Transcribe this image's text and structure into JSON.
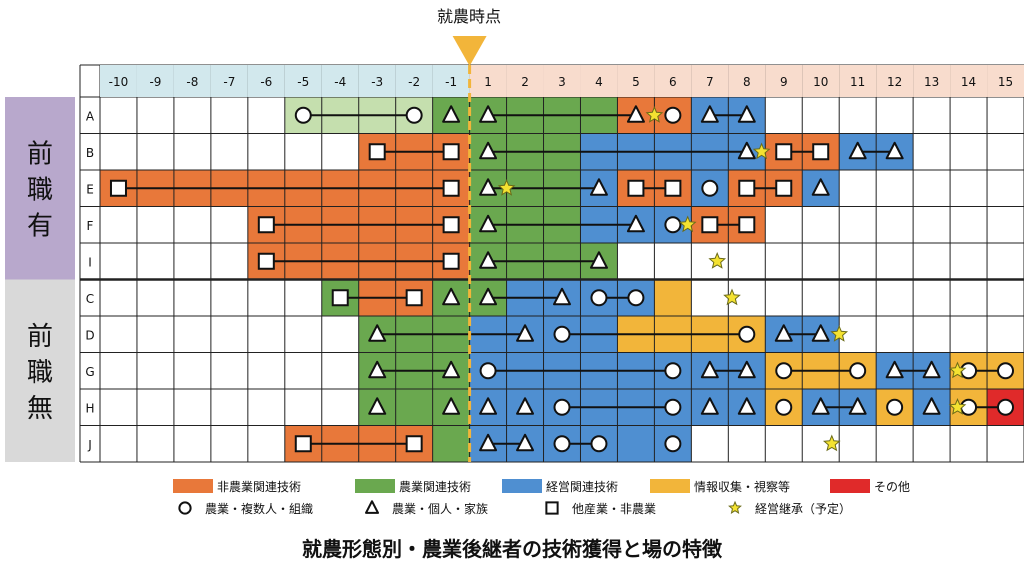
{
  "chart_data": {
    "type": "table",
    "title": "就農形態別・農業後継者の技術獲得と場の特徴",
    "marker_label": "就農時点",
    "columns": [
      "-10",
      "-9",
      "-8",
      "-7",
      "-6",
      "-5",
      "-4",
      "-3",
      "-2",
      "-1",
      "1",
      "2",
      "3",
      "4",
      "5",
      "6",
      "7",
      "8",
      "9",
      "10",
      "11",
      "12",
      "13",
      "14",
      "15"
    ],
    "groups": [
      {
        "label": "前\n職\n有",
        "label_chars": [
          "前",
          "職",
          "有"
        ],
        "color": "#b8a8cc",
        "rows": [
          "A",
          "B",
          "E",
          "F",
          "I"
        ]
      },
      {
        "label": "前\n職\n無",
        "label_chars": [
          "前",
          "職",
          "無"
        ],
        "color": "#d9d9d9",
        "rows": [
          "C",
          "D",
          "G",
          "H",
          "J"
        ]
      }
    ],
    "rows": [
      {
        "id": "A",
        "fills": [
          {
            "from": -5,
            "to": -2,
            "cat": "green_light"
          },
          {
            "from": -1,
            "to": 4,
            "cat": "agri"
          },
          {
            "from": 5,
            "to": 6,
            "cat": "nonfarm"
          },
          {
            "from": 7,
            "to": 8,
            "cat": "mgmt"
          }
        ],
        "symbols": [
          {
            "c": -5,
            "s": "circle"
          },
          {
            "c": -2,
            "s": "circle"
          },
          {
            "c": -1,
            "s": "triangle"
          },
          {
            "c": 1,
            "s": "triangle"
          },
          {
            "c": 5,
            "s": "triangle"
          },
          {
            "c": 6,
            "s": "circle"
          },
          {
            "c": 7,
            "s": "triangle"
          },
          {
            "c": 8,
            "s": "triangle"
          }
        ],
        "lines": [
          [
            -5,
            -2
          ],
          [
            1,
            5
          ],
          [
            7,
            8
          ]
        ],
        "stars": [
          5.5
        ]
      },
      {
        "id": "B",
        "fills": [
          {
            "from": -3,
            "to": -1,
            "cat": "nonfarm"
          },
          {
            "from": 1,
            "to": 3,
            "cat": "agri"
          },
          {
            "from": 4,
            "to": 8,
            "cat": "mgmt"
          },
          {
            "from": 9,
            "to": 10,
            "cat": "nonfarm"
          },
          {
            "from": 11,
            "to": 12,
            "cat": "mgmt"
          }
        ],
        "symbols": [
          {
            "c": -3,
            "s": "square"
          },
          {
            "c": -1,
            "s": "square"
          },
          {
            "c": 1,
            "s": "triangle"
          },
          {
            "c": 8,
            "s": "triangle"
          },
          {
            "c": 9,
            "s": "square"
          },
          {
            "c": 10,
            "s": "square"
          },
          {
            "c": 11,
            "s": "triangle"
          },
          {
            "c": 12,
            "s": "triangle"
          }
        ],
        "lines": [
          [
            -3,
            -1
          ],
          [
            1,
            8
          ],
          [
            9,
            10
          ],
          [
            11,
            12
          ]
        ],
        "stars": [
          8.4
        ]
      },
      {
        "id": "E",
        "fills": [
          {
            "from": -10,
            "to": -1,
            "cat": "nonfarm"
          },
          {
            "from": 1,
            "to": 3,
            "cat": "agri"
          },
          {
            "from": 4,
            "to": 4,
            "cat": "mgmt"
          },
          {
            "from": 5,
            "to": 6,
            "cat": "nonfarm"
          },
          {
            "from": 7,
            "to": 7,
            "cat": "mgmt"
          },
          {
            "from": 8,
            "to": 9,
            "cat": "nonfarm"
          },
          {
            "from": 10,
            "to": 10,
            "cat": "mgmt"
          }
        ],
        "symbols": [
          {
            "c": -10,
            "s": "square"
          },
          {
            "c": -1,
            "s": "square"
          },
          {
            "c": 1,
            "s": "triangle"
          },
          {
            "c": 4,
            "s": "triangle"
          },
          {
            "c": 5,
            "s": "square"
          },
          {
            "c": 6,
            "s": "square"
          },
          {
            "c": 7,
            "s": "circle"
          },
          {
            "c": 8,
            "s": "square"
          },
          {
            "c": 9,
            "s": "square"
          },
          {
            "c": 10,
            "s": "triangle"
          }
        ],
        "lines": [
          [
            -10,
            -1
          ],
          [
            1,
            4
          ],
          [
            5,
            6
          ],
          [
            8,
            9
          ]
        ],
        "stars": [
          1.5
        ]
      },
      {
        "id": "F",
        "fills": [
          {
            "from": -6,
            "to": -1,
            "cat": "nonfarm"
          },
          {
            "from": 1,
            "to": 3,
            "cat": "agri"
          },
          {
            "from": 4,
            "to": 6,
            "cat": "mgmt"
          },
          {
            "from": 7,
            "to": 8,
            "cat": "nonfarm"
          }
        ],
        "symbols": [
          {
            "c": -6,
            "s": "square"
          },
          {
            "c": -1,
            "s": "square"
          },
          {
            "c": 1,
            "s": "triangle"
          },
          {
            "c": 5,
            "s": "triangle"
          },
          {
            "c": 6,
            "s": "circle"
          },
          {
            "c": 7,
            "s": "square"
          },
          {
            "c": 8,
            "s": "square"
          }
        ],
        "lines": [
          [
            -6,
            -1
          ],
          [
            1,
            5
          ],
          [
            7,
            8
          ]
        ],
        "stars": [
          6.4
        ]
      },
      {
        "id": "I",
        "fills": [
          {
            "from": -6,
            "to": -1,
            "cat": "nonfarm"
          },
          {
            "from": 1,
            "to": 4,
            "cat": "agri"
          }
        ],
        "symbols": [
          {
            "c": -6,
            "s": "square"
          },
          {
            "c": -1,
            "s": "square"
          },
          {
            "c": 1,
            "s": "triangle"
          },
          {
            "c": 4,
            "s": "triangle"
          }
        ],
        "lines": [
          [
            -6,
            -1
          ],
          [
            1,
            4
          ]
        ],
        "stars": [
          7.2
        ]
      },
      {
        "id": "C",
        "fills": [
          {
            "from": -4,
            "to": -4,
            "cat": "agri"
          },
          {
            "from": -3,
            "to": -2,
            "cat": "nonfarm"
          },
          {
            "from": -1,
            "to": -1,
            "cat": "agri"
          },
          {
            "from": 1,
            "to": 1,
            "cat": "agri"
          },
          {
            "from": 2,
            "to": 5,
            "cat": "mgmt"
          },
          {
            "from": 6,
            "to": 6,
            "cat": "info"
          }
        ],
        "symbols": [
          {
            "c": -4,
            "s": "square"
          },
          {
            "c": -2,
            "s": "square"
          },
          {
            "c": -1,
            "s": "triangle"
          },
          {
            "c": 1,
            "s": "triangle"
          },
          {
            "c": 3,
            "s": "triangle"
          },
          {
            "c": 4,
            "s": "circle"
          },
          {
            "c": 5,
            "s": "circle"
          }
        ],
        "lines": [
          [
            -4,
            -2
          ],
          [
            1,
            3
          ],
          [
            4,
            5
          ]
        ],
        "stars": [
          7.6
        ]
      },
      {
        "id": "D",
        "fills": [
          {
            "from": -3,
            "to": -1,
            "cat": "agri"
          },
          {
            "from": 1,
            "to": 4,
            "cat": "mgmt"
          },
          {
            "from": 5,
            "to": 8,
            "cat": "info"
          },
          {
            "from": 9,
            "to": 10,
            "cat": "mgmt"
          }
        ],
        "symbols": [
          {
            "c": -3,
            "s": "triangle"
          },
          {
            "c": 2,
            "s": "triangle"
          },
          {
            "c": 3,
            "s": "circle"
          },
          {
            "c": 8,
            "s": "circle"
          },
          {
            "c": 9,
            "s": "triangle"
          },
          {
            "c": 10,
            "s": "triangle"
          }
        ],
        "lines": [
          [
            -3,
            2
          ],
          [
            3,
            8
          ],
          [
            9,
            10
          ]
        ],
        "stars": [
          10.5
        ]
      },
      {
        "id": "G",
        "fills": [
          {
            "from": -3,
            "to": -1,
            "cat": "agri"
          },
          {
            "from": 1,
            "to": 8,
            "cat": "mgmt"
          },
          {
            "from": 9,
            "to": 11,
            "cat": "info"
          },
          {
            "from": 12,
            "to": 13,
            "cat": "mgmt"
          },
          {
            "from": 14,
            "to": 15,
            "cat": "info"
          }
        ],
        "symbols": [
          {
            "c": -3,
            "s": "triangle"
          },
          {
            "c": -1,
            "s": "triangle"
          },
          {
            "c": 1,
            "s": "circle"
          },
          {
            "c": 6,
            "s": "circle"
          },
          {
            "c": 7,
            "s": "triangle"
          },
          {
            "c": 8,
            "s": "triangle"
          },
          {
            "c": 9,
            "s": "circle"
          },
          {
            "c": 11,
            "s": "circle"
          },
          {
            "c": 12,
            "s": "triangle"
          },
          {
            "c": 13,
            "s": "triangle"
          },
          {
            "c": 14,
            "s": "circle"
          },
          {
            "c": 15,
            "s": "circle"
          }
        ],
        "lines": [
          [
            -3,
            -1
          ],
          [
            1,
            6
          ],
          [
            7,
            8
          ],
          [
            9,
            11
          ],
          [
            12,
            13
          ],
          [
            14,
            15
          ]
        ],
        "stars": [
          13.7
        ]
      },
      {
        "id": "H",
        "fills": [
          {
            "from": -3,
            "to": -1,
            "cat": "agri"
          },
          {
            "from": 1,
            "to": 8,
            "cat": "mgmt"
          },
          {
            "from": 9,
            "to": 9,
            "cat": "info"
          },
          {
            "from": 10,
            "to": 11,
            "cat": "mgmt"
          },
          {
            "from": 12,
            "to": 12,
            "cat": "info"
          },
          {
            "from": 13,
            "to": 13,
            "cat": "mgmt"
          },
          {
            "from": 14,
            "to": 14,
            "cat": "info"
          },
          {
            "from": 15,
            "to": 15,
            "cat": "other"
          }
        ],
        "symbols": [
          {
            "c": -3,
            "s": "triangle"
          },
          {
            "c": -1,
            "s": "triangle"
          },
          {
            "c": 1,
            "s": "triangle"
          },
          {
            "c": 2,
            "s": "triangle"
          },
          {
            "c": 3,
            "s": "circle"
          },
          {
            "c": 6,
            "s": "circle"
          },
          {
            "c": 7,
            "s": "triangle"
          },
          {
            "c": 8,
            "s": "triangle"
          },
          {
            "c": 9,
            "s": "circle"
          },
          {
            "c": 10,
            "s": "triangle"
          },
          {
            "c": 11,
            "s": "triangle"
          },
          {
            "c": 12,
            "s": "circle"
          },
          {
            "c": 13,
            "s": "triangle"
          },
          {
            "c": 14,
            "s": "circle"
          },
          {
            "c": 15,
            "s": "circle"
          }
        ],
        "lines": [
          [
            3,
            6
          ],
          [
            10,
            11
          ],
          [
            14,
            15
          ]
        ],
        "stars": [
          13.7
        ]
      },
      {
        "id": "J",
        "fills": [
          {
            "from": -5,
            "to": -2,
            "cat": "nonfarm"
          },
          {
            "from": -1,
            "to": -1,
            "cat": "agri"
          },
          {
            "from": 1,
            "to": 6,
            "cat": "mgmt"
          }
        ],
        "symbols": [
          {
            "c": -5,
            "s": "square"
          },
          {
            "c": -2,
            "s": "square"
          },
          {
            "c": 1,
            "s": "triangle"
          },
          {
            "c": 2,
            "s": "triangle"
          },
          {
            "c": 3,
            "s": "circle"
          },
          {
            "c": 4,
            "s": "circle"
          },
          {
            "c": 6,
            "s": "circle"
          }
        ],
        "lines": [
          [
            -5,
            -2
          ],
          [
            1,
            2
          ],
          [
            3,
            4
          ]
        ],
        "stars": [
          10.3
        ]
      }
    ],
    "categories": [
      {
        "key": "nonfarm",
        "label": "非農業関連技術",
        "color": "#e8783a"
      },
      {
        "key": "agri",
        "label": "農業関連技術",
        "color": "#6aa84f"
      },
      {
        "key": "mgmt",
        "label": "経営関連技術",
        "color": "#4f8fd1"
      },
      {
        "key": "info",
        "label": "情報収集・視察等",
        "color": "#f2b53a"
      },
      {
        "key": "other",
        "label": "その他",
        "color": "#e02a2a"
      }
    ],
    "extra_colors": {
      "green_light": "#c5dfae",
      "header_neg": "#d2e8ed",
      "header_pos": "#f8dccd",
      "marker": "#f2b53a"
    },
    "symbol_legend": [
      {
        "s": "circle",
        "label": "農業・複数人・組織"
      },
      {
        "s": "triangle",
        "label": "農業・個人・家族"
      },
      {
        "s": "square",
        "label": "他産業・非農業"
      },
      {
        "s": "star",
        "label": "経営継承（予定）"
      }
    ]
  }
}
